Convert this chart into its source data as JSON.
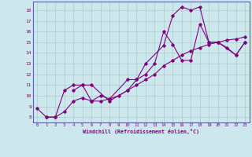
{
  "xlabel": "Windchill (Refroidissement éolien,°C)",
  "bg_color": "#cce8ec",
  "grid_color": "#aacccc",
  "line_color": "#800080",
  "s1x": [
    0,
    1,
    2,
    3,
    4,
    5,
    6,
    8,
    10,
    11,
    12,
    14,
    15,
    16,
    17,
    18,
    19,
    20,
    22,
    23
  ],
  "s1y": [
    8.8,
    8.0,
    8.0,
    10.5,
    11.0,
    11.0,
    11.0,
    9.5,
    10.5,
    11.5,
    13.0,
    14.7,
    17.5,
    18.3,
    18.0,
    18.3,
    15.0,
    15.0,
    13.8,
    15.0
  ],
  "s2x": [
    4,
    5,
    6,
    7,
    8,
    10,
    11,
    12,
    13,
    14,
    15,
    16,
    17,
    18,
    19,
    20,
    21,
    22,
    23
  ],
  "s2y": [
    10.5,
    11.0,
    9.5,
    10.0,
    9.7,
    11.5,
    11.5,
    12.0,
    13.0,
    16.0,
    14.8,
    13.3,
    13.3,
    16.7,
    15.0,
    15.0,
    14.5,
    13.8,
    15.0
  ],
  "s3x": [
    1,
    2,
    3,
    4,
    5,
    6,
    7,
    8,
    9,
    10,
    11,
    12,
    13,
    14,
    15,
    16,
    17,
    18,
    19,
    20,
    21,
    22,
    23
  ],
  "s3y": [
    8.0,
    8.0,
    8.5,
    9.5,
    9.8,
    9.5,
    9.5,
    9.7,
    10.0,
    10.5,
    11.0,
    11.5,
    12.0,
    12.8,
    13.3,
    13.8,
    14.2,
    14.5,
    14.8,
    15.0,
    15.2,
    15.3,
    15.5
  ],
  "xlim": [
    -0.5,
    23.5
  ],
  "ylim": [
    7.5,
    18.8
  ],
  "yticks": [
    8,
    9,
    10,
    11,
    12,
    13,
    14,
    15,
    16,
    17,
    18
  ],
  "xticks": [
    0,
    1,
    2,
    3,
    4,
    5,
    6,
    7,
    8,
    9,
    10,
    11,
    12,
    13,
    14,
    15,
    16,
    17,
    18,
    19,
    20,
    21,
    22,
    23
  ]
}
